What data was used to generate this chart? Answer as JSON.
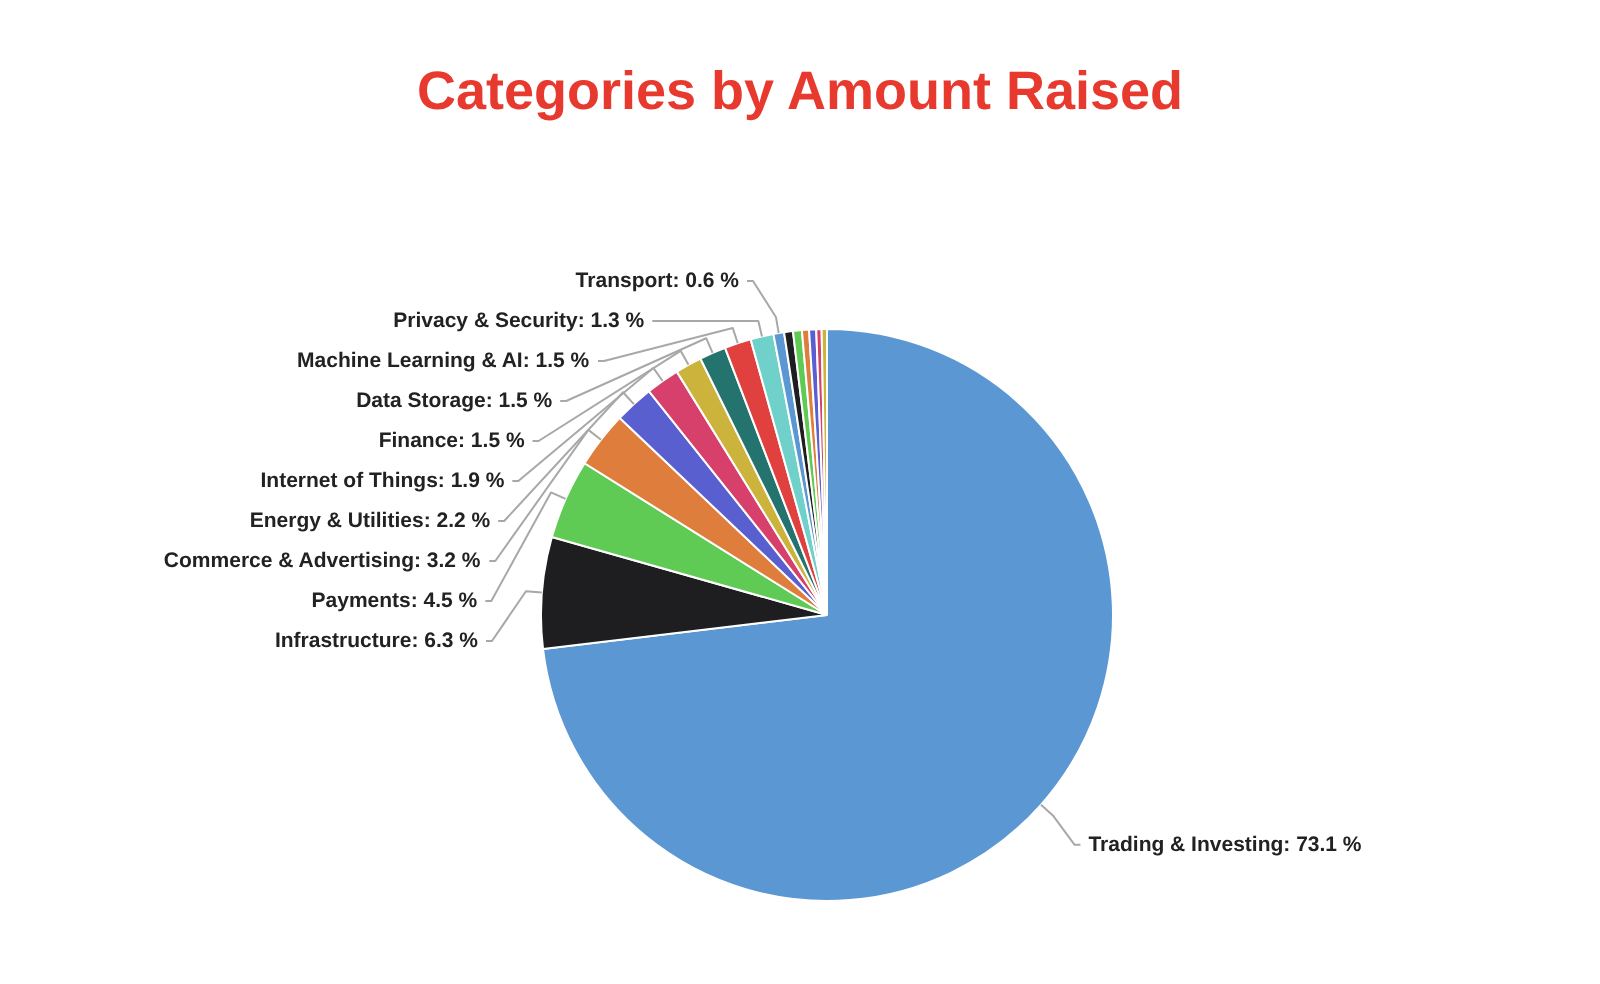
{
  "chart_data": {
    "type": "pie",
    "title": "Categories by Amount Raised",
    "categories": [
      "Trading & Investing",
      "Infrastructure",
      "Payments",
      "Commerce & Advertising",
      "Energy & Utilities",
      "Internet of Things",
      "Finance",
      "Data Storage",
      "Machine Learning & AI",
      "Privacy & Security",
      "Transport",
      null,
      null,
      null,
      null,
      null,
      null
    ],
    "values": [
      73.1,
      6.3,
      4.5,
      3.2,
      2.2,
      1.9,
      1.5,
      1.5,
      1.5,
      1.3,
      0.6,
      0.5,
      0.5,
      0.4,
      0.4,
      0.3,
      0.3
    ],
    "value_labels": [
      "73.1 %",
      "6.3 %",
      "4.5 %",
      "3.2 %",
      "2.2 %",
      "1.9 %",
      "1.5 %",
      "1.5 %",
      "1.5 %",
      "1.3 %",
      "0.6 %",
      null,
      null,
      null,
      null,
      null,
      null
    ],
    "colors": [
      "#5b97d2",
      "#1e1e20",
      "#5fcb55",
      "#de7d3c",
      "#5a5fcf",
      "#d6406a",
      "#cbb33c",
      "#25736f",
      "#e0413f",
      "#6fd1c9",
      "#5b97d2",
      "#1e1e20",
      "#5fcb55",
      "#de7d3c",
      "#5a5fcf",
      "#d6406a",
      "#cbb33c"
    ]
  }
}
